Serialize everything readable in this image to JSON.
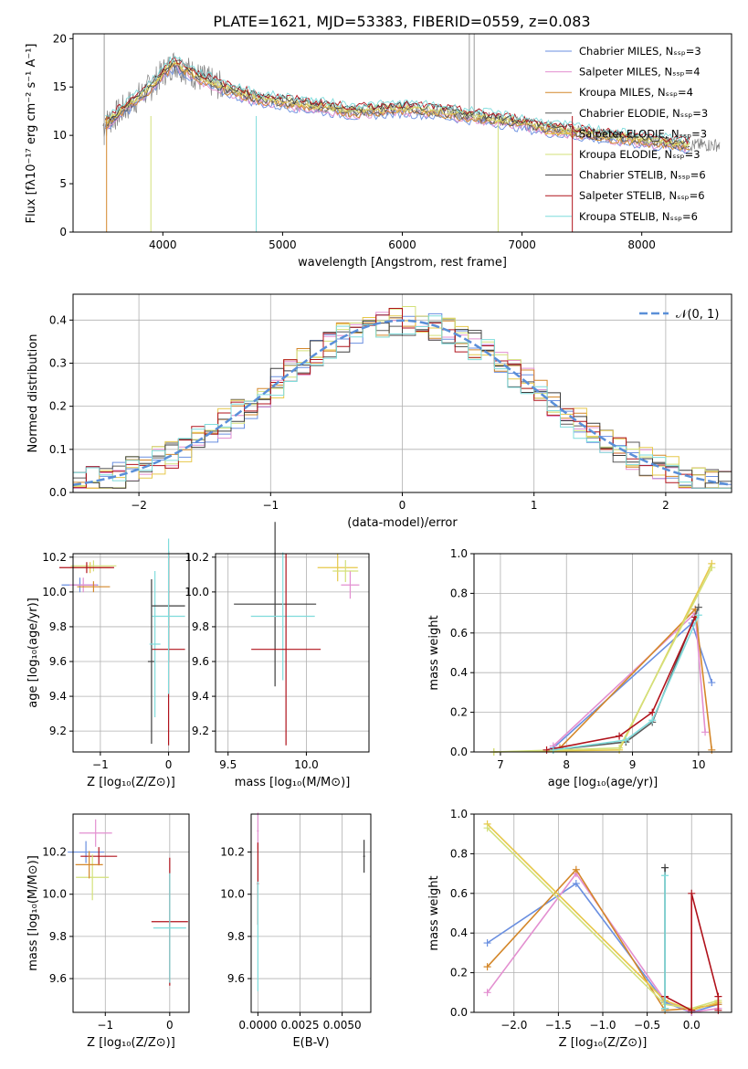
{
  "colors": [
    "#6a8fe0",
    "#e38fd0",
    "#d4872a",
    "#5a5a5a",
    "#e6c84a",
    "#d3e07a",
    "#3e3e3e",
    "#b0121b",
    "#7fdcdc"
  ],
  "top": {
    "title": "PLATE=1621, MJD=53383, FIBERID=0559, z=0.083",
    "xlabel": "wavelength [Angstrom, rest frame]",
    "ylabel": "Flux [fλ10⁻¹⁷ erg cm⁻² s⁻¹ A⁻¹]",
    "xticks": [
      "4000",
      "5000",
      "6000",
      "7000",
      "8000"
    ],
    "yticks": [
      "0",
      "5",
      "10",
      "15",
      "20"
    ],
    "legend": [
      "Chabrier MILES, N_SSP=3",
      "Salpeter MILES, N_SSP=4",
      "Kroupa MILES, N_SSP=4",
      "Chabrier ELODIE, N_SSP=3",
      "Salpeter ELODIE, N_SSP=3",
      "Kroupa ELODIE, N_SSP=3",
      "Chabrier STELIB, N_SSP=6",
      "Salpeter STELIB, N_SSP=6",
      "Kroupa STELIB, N_SSP=6"
    ]
  },
  "hist": {
    "xlabel": "(data-model)/error",
    "ylabel": "Normed distribution",
    "legend": "𝒩(0, 1)",
    "xticks": [
      "−2",
      "−1",
      "0",
      "1",
      "2"
    ],
    "yticks": [
      "0.0",
      "0.1",
      "0.2",
      "0.3",
      "0.4"
    ]
  },
  "panels": {
    "a_xlabel": "Z [log₁₀(Z/Z⊙)]",
    "a_ylabel": "age  [log₁₀(age/yr)]",
    "b_xlabel": "mass [log₁₀(M/M⊙)]",
    "c_xlabel": "age  [log₁₀(age/yr)]",
    "c_ylabel": "mass weight",
    "d_xlabel": "Z [log₁₀(Z/Z⊙)]",
    "d_ylabel": "mass [log₁₀(M/M⊙)]",
    "e_xlabel": "E(B-V)",
    "f_xlabel": "Z [log₁₀(Z/Z⊙)]",
    "f_ylabel": "mass weight"
  },
  "chart_data": [
    {
      "type": "line",
      "title": "PLATE=1621, MJD=53383, FIBERID=0559, z=0.083",
      "xlim": [
        3250,
        8750
      ],
      "ylim": [
        0,
        20.5
      ],
      "continuum_x": [
        3500,
        3700,
        3900,
        4000,
        4100,
        4300,
        4500,
        4800,
        5000,
        5300,
        5600,
        6000,
        6300,
        6600,
        6900,
        7200,
        7500,
        7800,
        8100,
        8400
      ],
      "continuum_y": [
        11,
        13,
        15,
        16.5,
        17.5,
        16,
        15,
        13.8,
        13.5,
        13,
        12.5,
        12.8,
        12.5,
        12,
        11.5,
        10.8,
        10.3,
        9.8,
        9.4,
        9.0
      ]
    },
    {
      "type": "line",
      "xlim": [
        -2.5,
        2.5
      ],
      "ylim": [
        0,
        0.46
      ],
      "gaussian": "N(0,1)"
    },
    {
      "type": "scatter",
      "xlim": [
        -1.4,
        0.3
      ],
      "ylim": [
        9.08,
        10.22
      ],
      "points": [
        {
          "x": -1.3,
          "y": 10.04,
          "c": 0
        },
        {
          "x": -1.25,
          "y": 10.04,
          "c": 1
        },
        {
          "x": -1.1,
          "y": 10.03,
          "c": 2
        },
        {
          "x": -1.15,
          "y": 10.14,
          "c": 4
        },
        {
          "x": -1.1,
          "y": 10.15,
          "c": 5
        },
        {
          "x": -1.2,
          "y": 10.14,
          "c": 7
        },
        {
          "x": -0.25,
          "y": 9.6,
          "c": 6
        },
        {
          "x": -0.2,
          "y": 9.7,
          "c": 8
        },
        {
          "x": 0.0,
          "y": 9.92,
          "c": 6
        },
        {
          "x": 0.0,
          "y": 9.67,
          "c": 7
        },
        {
          "x": 0.0,
          "y": 9.86,
          "c": 8
        }
      ]
    },
    {
      "type": "scatter",
      "xlim": [
        9.42,
        10.4
      ],
      "ylim": [
        9.08,
        10.22
      ],
      "points": [
        {
          "x": 9.8,
          "y": 9.93,
          "c": 6
        },
        {
          "x": 9.85,
          "y": 9.86,
          "c": 8
        },
        {
          "x": 9.87,
          "y": 9.67,
          "c": 7
        },
        {
          "x": 10.2,
          "y": 10.14,
          "c": 4
        },
        {
          "x": 10.25,
          "y": 10.12,
          "c": 5
        },
        {
          "x": 10.28,
          "y": 10.04,
          "c": 1
        }
      ]
    },
    {
      "type": "line",
      "xlim": [
        6.6,
        10.5
      ],
      "ylim": [
        0,
        1.0
      ],
      "series": [
        {
          "c": 0,
          "x": [
            7.8,
            9.9,
            10.2
          ],
          "y": [
            0.02,
            0.65,
            0.35
          ]
        },
        {
          "c": 1,
          "x": [
            7.8,
            9.95,
            10.1
          ],
          "y": [
            0.03,
            0.7,
            0.1
          ]
        },
        {
          "c": 2,
          "x": [
            7.9,
            9.95,
            10.2
          ],
          "y": [
            0.02,
            0.72,
            0.01
          ]
        },
        {
          "c": 3,
          "x": [
            7.8,
            8.9,
            9.3,
            10.0
          ],
          "y": [
            0.01,
            0.05,
            0.15,
            0.73
          ]
        },
        {
          "c": 4,
          "x": [
            6.9,
            8.8,
            10.2
          ],
          "y": [
            0.0,
            0.01,
            0.95
          ]
        },
        {
          "c": 5,
          "x": [
            6.9,
            8.8,
            10.2
          ],
          "y": [
            0.0,
            0.02,
            0.93
          ]
        },
        {
          "c": 7,
          "x": [
            7.7,
            8.8,
            9.3,
            9.95
          ],
          "y": [
            0.01,
            0.08,
            0.2,
            0.68
          ]
        },
        {
          "c": 8,
          "x": [
            7.8,
            8.9,
            9.3,
            10.0
          ],
          "y": [
            0.01,
            0.06,
            0.16,
            0.69
          ]
        }
      ]
    },
    {
      "type": "scatter",
      "xlim": [
        -1.5,
        0.3
      ],
      "ylim": [
        9.44,
        10.38
      ],
      "points": [
        {
          "x": -1.3,
          "y": 10.2,
          "c": 0
        },
        {
          "x": -1.15,
          "y": 10.29,
          "c": 1
        },
        {
          "x": -1.1,
          "y": 10.18,
          "c": 7
        },
        {
          "x": -1.2,
          "y": 10.08,
          "c": 5
        },
        {
          "x": -1.25,
          "y": 10.14,
          "c": 2
        },
        {
          "x": 0.0,
          "y": 9.87,
          "c": 7
        },
        {
          "x": 0.0,
          "y": 9.84,
          "c": 8
        }
      ]
    },
    {
      "type": "scatter",
      "xlim": [
        -0.0004,
        0.0067
      ],
      "ylim": [
        9.44,
        10.38
      ],
      "points": [
        {
          "x": 0.0,
          "y": 10.3,
          "c": 1
        },
        {
          "x": 0.0,
          "y": 10.05,
          "c": 7
        },
        {
          "x": 0.0,
          "y": 9.8,
          "c": 8
        },
        {
          "x": 0.0063,
          "y": 10.18,
          "c": 6
        }
      ]
    },
    {
      "type": "line",
      "xlim": [
        -2.45,
        0.45
      ],
      "ylim": [
        0,
        1.0
      ],
      "series": [
        {
          "c": 0,
          "x": [
            -2.3,
            -1.3,
            -0.3,
            0.0,
            0.3
          ],
          "y": [
            0.35,
            0.65,
            0.05,
            0.0,
            0.04
          ]
        },
        {
          "c": 1,
          "x": [
            -2.3,
            -1.3,
            -0.3,
            0.0,
            0.3
          ],
          "y": [
            0.1,
            0.7,
            0.06,
            0.0,
            0.02
          ]
        },
        {
          "c": 2,
          "x": [
            -2.3,
            -1.3,
            -0.3,
            0.0,
            0.3
          ],
          "y": [
            0.23,
            0.72,
            0.01,
            0.02,
            0.04
          ]
        },
        {
          "c": 4,
          "x": [
            -2.3,
            -0.3,
            0.0,
            0.3
          ],
          "y": [
            0.95,
            0.06,
            0.01,
            0.05
          ]
        },
        {
          "c": 5,
          "x": [
            -2.3,
            -0.3,
            0.0,
            0.3
          ],
          "y": [
            0.93,
            0.04,
            0.02,
            0.06
          ]
        },
        {
          "c": 6,
          "x": [
            -0.3,
            -0.3
          ],
          "y": [
            0.73,
            0.02
          ]
        },
        {
          "c": 7,
          "x": [
            -0.3,
            0.0,
            0.0,
            0.3,
            0.3
          ],
          "y": [
            0.08,
            0.01,
            0.6,
            0.08,
            0.01
          ]
        },
        {
          "c": 8,
          "x": [
            -0.3,
            -0.3
          ],
          "y": [
            0.69,
            0.02
          ]
        }
      ]
    }
  ]
}
